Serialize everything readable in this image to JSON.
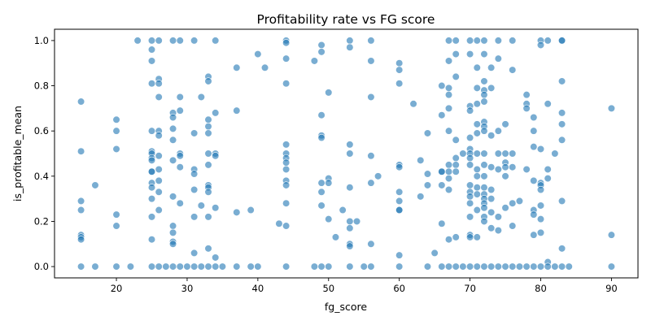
{
  "chart_data": {
    "type": "scatter",
    "title": "Profitability rate vs FG score",
    "xlabel": "fg_score",
    "ylabel": "is_profitable_mean",
    "xlim": [
      11.25,
      93.75
    ],
    "ylim": [
      -0.05,
      1.05
    ],
    "xticks": [
      "20",
      "30",
      "40",
      "50",
      "60",
      "70",
      "80",
      "90"
    ],
    "xtick_values": [
      20,
      30,
      40,
      50,
      60,
      70,
      80,
      90
    ],
    "yticks": [
      "0.0",
      "0.2",
      "0.4",
      "0.6",
      "0.8",
      "1.0"
    ],
    "ytick_values": [
      0.0,
      0.2,
      0.4,
      0.6,
      0.8,
      1.0
    ],
    "grid": false,
    "legend": "none",
    "color": "#1f77b4",
    "points": [
      [
        15,
        0.73
      ],
      [
        15,
        0.51
      ],
      [
        15,
        0.29
      ],
      [
        15,
        0.25
      ],
      [
        15,
        0.14
      ],
      [
        15,
        0.13
      ],
      [
        15,
        0.12
      ],
      [
        15,
        0.0
      ],
      [
        17,
        0.36
      ],
      [
        17,
        0.0
      ],
      [
        20,
        0.65
      ],
      [
        20,
        0.6
      ],
      [
        20,
        0.52
      ],
      [
        20,
        0.23
      ],
      [
        20,
        0.18
      ],
      [
        20,
        0.0
      ],
      [
        22,
        0.0
      ],
      [
        23,
        1.0
      ],
      [
        25,
        1.0
      ],
      [
        25,
        0.96
      ],
      [
        25,
        0.91
      ],
      [
        25,
        0.81
      ],
      [
        25,
        0.6
      ],
      [
        25,
        0.51
      ],
      [
        25,
        0.5
      ],
      [
        25,
        0.48
      ],
      [
        25,
        0.47
      ],
      [
        25,
        0.42
      ],
      [
        25,
        0.42
      ],
      [
        25,
        0.37
      ],
      [
        25,
        0.35
      ],
      [
        25,
        0.3
      ],
      [
        25,
        0.22
      ],
      [
        25,
        0.12
      ],
      [
        25,
        0.0
      ],
      [
        26,
        1.0
      ],
      [
        26,
        0.83
      ],
      [
        26,
        0.81
      ],
      [
        26,
        0.75
      ],
      [
        26,
        0.6
      ],
      [
        26,
        0.58
      ],
      [
        26,
        0.49
      ],
      [
        26,
        0.43
      ],
      [
        26,
        0.38
      ],
      [
        26,
        0.33
      ],
      [
        26,
        0.25
      ],
      [
        26,
        0.0
      ],
      [
        27,
        0.0
      ],
      [
        28,
        1.0
      ],
      [
        28,
        0.68
      ],
      [
        28,
        0.66
      ],
      [
        28,
        0.61
      ],
      [
        28,
        0.56
      ],
      [
        28,
        0.47
      ],
      [
        28,
        0.31
      ],
      [
        28,
        0.18
      ],
      [
        28,
        0.15
      ],
      [
        28,
        0.11
      ],
      [
        28,
        0.1
      ],
      [
        28,
        0.0
      ],
      [
        29,
        1.0
      ],
      [
        29,
        0.75
      ],
      [
        29,
        0.69
      ],
      [
        29,
        0.5
      ],
      [
        29,
        0.49
      ],
      [
        29,
        0.44
      ],
      [
        29,
        0.28
      ],
      [
        29,
        0.0
      ],
      [
        30,
        0.0
      ],
      [
        31,
        1.0
      ],
      [
        31,
        0.59
      ],
      [
        31,
        0.43
      ],
      [
        31,
        0.41
      ],
      [
        31,
        0.34
      ],
      [
        31,
        0.22
      ],
      [
        31,
        0.06
      ],
      [
        31,
        0.0
      ],
      [
        32,
        0.75
      ],
      [
        32,
        0.27
      ],
      [
        32,
        0.0
      ],
      [
        33,
        0.84
      ],
      [
        33,
        0.82
      ],
      [
        33,
        0.65
      ],
      [
        33,
        0.62
      ],
      [
        33,
        0.59
      ],
      [
        33,
        0.5
      ],
      [
        33,
        0.45
      ],
      [
        33,
        0.36
      ],
      [
        33,
        0.35
      ],
      [
        33,
        0.33
      ],
      [
        33,
        0.22
      ],
      [
        33,
        0.08
      ],
      [
        33,
        0.0
      ],
      [
        34,
        1.0
      ],
      [
        34,
        0.68
      ],
      [
        34,
        0.5
      ],
      [
        34,
        0.49
      ],
      [
        34,
        0.26
      ],
      [
        34,
        0.04
      ],
      [
        34,
        0.0
      ],
      [
        35,
        0.0
      ],
      [
        37,
        0.88
      ],
      [
        37,
        0.69
      ],
      [
        37,
        0.24
      ],
      [
        37,
        0.0
      ],
      [
        39,
        0.25
      ],
      [
        39,
        0.0
      ],
      [
        40,
        0.94
      ],
      [
        40,
        0.0
      ],
      [
        41,
        0.88
      ],
      [
        43,
        0.19
      ],
      [
        44,
        1.0
      ],
      [
        44,
        0.99
      ],
      [
        44,
        0.92
      ],
      [
        44,
        0.81
      ],
      [
        44,
        0.54
      ],
      [
        44,
        0.5
      ],
      [
        44,
        0.48
      ],
      [
        44,
        0.46
      ],
      [
        44,
        0.43
      ],
      [
        44,
        0.38
      ],
      [
        44,
        0.36
      ],
      [
        44,
        0.28
      ],
      [
        44,
        0.18
      ],
      [
        44,
        0.0
      ],
      [
        48,
        0.91
      ],
      [
        48,
        0.0
      ],
      [
        49,
        0.98
      ],
      [
        49,
        0.95
      ],
      [
        49,
        0.67
      ],
      [
        49,
        0.58
      ],
      [
        49,
        0.57
      ],
      [
        49,
        0.37
      ],
      [
        49,
        0.33
      ],
      [
        49,
        0.27
      ],
      [
        49,
        0.0
      ],
      [
        50,
        0.77
      ],
      [
        50,
        0.39
      ],
      [
        50,
        0.37
      ],
      [
        50,
        0.21
      ],
      [
        50,
        0.0
      ],
      [
        51,
        0.13
      ],
      [
        52,
        0.25
      ],
      [
        53,
        1.0
      ],
      [
        53,
        0.97
      ],
      [
        53,
        0.54
      ],
      [
        53,
        0.5
      ],
      [
        53,
        0.35
      ],
      [
        53,
        0.2
      ],
      [
        53,
        0.17
      ],
      [
        53,
        0.1
      ],
      [
        53,
        0.09
      ],
      [
        53,
        0.0
      ],
      [
        54,
        0.2
      ],
      [
        55,
        0.0
      ],
      [
        56,
        1.0
      ],
      [
        56,
        0.91
      ],
      [
        56,
        0.75
      ],
      [
        56,
        0.49
      ],
      [
        56,
        0.37
      ],
      [
        56,
        0.1
      ],
      [
        56,
        0.0
      ],
      [
        57,
        0.4
      ],
      [
        60,
        0.9
      ],
      [
        60,
        0.87
      ],
      [
        60,
        0.81
      ],
      [
        60,
        0.45
      ],
      [
        60,
        0.44
      ],
      [
        60,
        0.33
      ],
      [
        60,
        0.29
      ],
      [
        60,
        0.25
      ],
      [
        60,
        0.25
      ],
      [
        60,
        0.05
      ],
      [
        60,
        0.0
      ],
      [
        62,
        0.72
      ],
      [
        63,
        0.47
      ],
      [
        63,
        0.31
      ],
      [
        64,
        0.59
      ],
      [
        64,
        0.41
      ],
      [
        64,
        0.36
      ],
      [
        64,
        0.0
      ],
      [
        65,
        0.06
      ],
      [
        66,
        0.8
      ],
      [
        66,
        0.67
      ],
      [
        66,
        0.42
      ],
      [
        66,
        0.42
      ],
      [
        66,
        0.36
      ],
      [
        66,
        0.19
      ],
      [
        66,
        0.0
      ],
      [
        67,
        1.0
      ],
      [
        67,
        0.91
      ],
      [
        67,
        0.79
      ],
      [
        67,
        0.76
      ],
      [
        67,
        0.7
      ],
      [
        67,
        0.6
      ],
      [
        67,
        0.45
      ],
      [
        67,
        0.42
      ],
      [
        67,
        0.39
      ],
      [
        67,
        0.34
      ],
      [
        67,
        0.12
      ],
      [
        67,
        0.0
      ],
      [
        68,
        1.0
      ],
      [
        68,
        0.94
      ],
      [
        68,
        0.84
      ],
      [
        68,
        0.56
      ],
      [
        68,
        0.48
      ],
      [
        68,
        0.45
      ],
      [
        68,
        0.42
      ],
      [
        68,
        0.13
      ],
      [
        68,
        0.0
      ],
      [
        69,
        0.5
      ],
      [
        69,
        0.0
      ],
      [
        70,
        1.0
      ],
      [
        70,
        0.94
      ],
      [
        70,
        0.71
      ],
      [
        70,
        0.69
      ],
      [
        70,
        0.57
      ],
      [
        70,
        0.52
      ],
      [
        70,
        0.5
      ],
      [
        70,
        0.48
      ],
      [
        70,
        0.45
      ],
      [
        70,
        0.36
      ],
      [
        70,
        0.33
      ],
      [
        70,
        0.31
      ],
      [
        70,
        0.28
      ],
      [
        70,
        0.22
      ],
      [
        70,
        0.14
      ],
      [
        70,
        0.13
      ],
      [
        70,
        0.0
      ],
      [
        71,
        1.0
      ],
      [
        71,
        0.88
      ],
      [
        71,
        0.79
      ],
      [
        71,
        0.72
      ],
      [
        71,
        0.63
      ],
      [
        71,
        0.59
      ],
      [
        71,
        0.5
      ],
      [
        71,
        0.43
      ],
      [
        71,
        0.4
      ],
      [
        71,
        0.35
      ],
      [
        71,
        0.32
      ],
      [
        71,
        0.25
      ],
      [
        71,
        0.13
      ],
      [
        71,
        0.0
      ],
      [
        72,
        1.0
      ],
      [
        72,
        0.94
      ],
      [
        72,
        0.82
      ],
      [
        72,
        0.78
      ],
      [
        72,
        0.76
      ],
      [
        72,
        0.73
      ],
      [
        72,
        0.64
      ],
      [
        72,
        0.62
      ],
      [
        72,
        0.6
      ],
      [
        72,
        0.5
      ],
      [
        72,
        0.45
      ],
      [
        72,
        0.4
      ],
      [
        72,
        0.35
      ],
      [
        72,
        0.32
      ],
      [
        72,
        0.3
      ],
      [
        72,
        0.28
      ],
      [
        72,
        0.26
      ],
      [
        72,
        0.22
      ],
      [
        72,
        0.2
      ],
      [
        72,
        0.0
      ],
      [
        73,
        0.88
      ],
      [
        73,
        0.79
      ],
      [
        73,
        0.58
      ],
      [
        73,
        0.44
      ],
      [
        73,
        0.34
      ],
      [
        73,
        0.3
      ],
      [
        73,
        0.24
      ],
      [
        73,
        0.17
      ],
      [
        73,
        0.0
      ],
      [
        74,
        1.0
      ],
      [
        74,
        0.92
      ],
      [
        74,
        0.6
      ],
      [
        74,
        0.5
      ],
      [
        74,
        0.43
      ],
      [
        74,
        0.22
      ],
      [
        74,
        0.16
      ],
      [
        74,
        0.0
      ],
      [
        75,
        0.63
      ],
      [
        75,
        0.5
      ],
      [
        75,
        0.46
      ],
      [
        75,
        0.44
      ],
      [
        75,
        0.4
      ],
      [
        75,
        0.26
      ],
      [
        75,
        0.0
      ],
      [
        76,
        1.0
      ],
      [
        76,
        0.87
      ],
      [
        76,
        0.5
      ],
      [
        76,
        0.44
      ],
      [
        76,
        0.28
      ],
      [
        76,
        0.18
      ],
      [
        76,
        0.0
      ],
      [
        77,
        0.29
      ],
      [
        77,
        0.0
      ],
      [
        78,
        0.76
      ],
      [
        78,
        0.72
      ],
      [
        78,
        0.7
      ],
      [
        78,
        0.43
      ],
      [
        78,
        0.0
      ],
      [
        79,
        0.66
      ],
      [
        79,
        0.6
      ],
      [
        79,
        0.53
      ],
      [
        79,
        0.38
      ],
      [
        79,
        0.25
      ],
      [
        79,
        0.23
      ],
      [
        79,
        0.14
      ],
      [
        79,
        0.0
      ],
      [
        80,
        1.0
      ],
      [
        80,
        0.98
      ],
      [
        80,
        0.52
      ],
      [
        80,
        0.37
      ],
      [
        80,
        0.36
      ],
      [
        80,
        0.34
      ],
      [
        80,
        0.27
      ],
      [
        80,
        0.21
      ],
      [
        80,
        0.15
      ],
      [
        80,
        0.0
      ],
      [
        81,
        1.0
      ],
      [
        81,
        0.72
      ],
      [
        81,
        0.43
      ],
      [
        81,
        0.39
      ],
      [
        81,
        0.02
      ],
      [
        81,
        0.0
      ],
      [
        82,
        0.5
      ],
      [
        82,
        0.0
      ],
      [
        83,
        1.0
      ],
      [
        83,
        1.0
      ],
      [
        83,
        0.82
      ],
      [
        83,
        0.68
      ],
      [
        83,
        0.63
      ],
      [
        83,
        0.56
      ],
      [
        83,
        0.29
      ],
      [
        83,
        0.08
      ],
      [
        83,
        0.0
      ],
      [
        84,
        0.0
      ],
      [
        90,
        0.7
      ],
      [
        90,
        0.14
      ],
      [
        90,
        0.0
      ]
    ]
  }
}
